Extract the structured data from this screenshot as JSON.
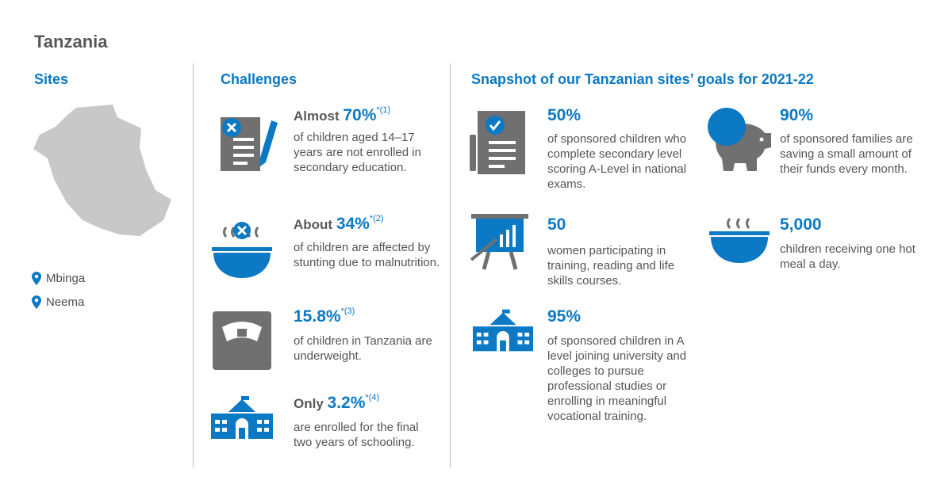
{
  "page_title": "Tanzania",
  "sites": {
    "heading": "Sites",
    "items": [
      "Mbinga",
      "Neema"
    ]
  },
  "challenges": {
    "heading": "Challenges",
    "items": [
      {
        "prefix": "Almost",
        "value": "70%",
        "ref": "*(1)",
        "text": "of children aged 14–17 years are not enrolled in secondary education.",
        "icon": "document-x-icon"
      },
      {
        "prefix": "About",
        "value": "34%",
        "ref": "*(2)",
        "text": "of children are affected by stunting due to malnutrition.",
        "icon": "bowl-x-icon"
      },
      {
        "prefix": "",
        "value": "15.8%",
        "ref": "*(3)",
        "text": "of children in Tanzania are underweight.",
        "icon": "scale-icon"
      },
      {
        "prefix": "Only",
        "value": "3.2%",
        "ref": "*(4)",
        "text": "are enrolled for the final two years of schooling.",
        "icon": "school-icon"
      }
    ]
  },
  "goals": {
    "heading": "Snapshot of our Tanzanian sites’ goals for 2021-22",
    "items": [
      {
        "value": "50%",
        "text": "of sponsored children who complete secondary level scoring A-Level in national exams.",
        "icon": "document-check-icon"
      },
      {
        "value": "90%",
        "text": "of sponsored families are saving a small amount of their funds every month.",
        "icon": "piggy-bank-icon"
      },
      {
        "value": "50",
        "text": "women participating in training, reading and life skills courses.",
        "icon": "presentation-board-icon"
      },
      {
        "value": "5,000",
        "text": "children receiving one hot meal a day.",
        "icon": "hot-meal-bowl-icon"
      },
      {
        "value": "95%",
        "text": "of sponsored children in A level joining university and colleges to pursue professional studies or enrolling in meaningful vocational training.",
        "icon": "school-icon"
      }
    ]
  },
  "colors": {
    "accent": "#0b79c4",
    "icon_grey": "#707070",
    "map_grey": "#c8c8c8",
    "text": "#555555"
  }
}
